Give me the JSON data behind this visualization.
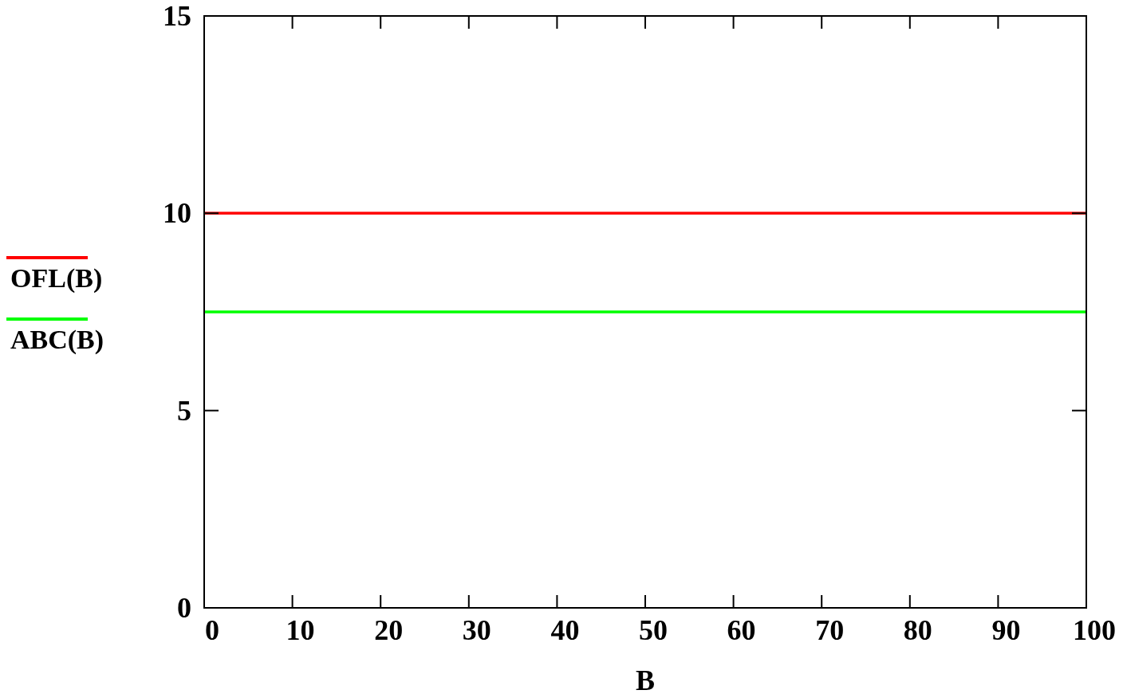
{
  "chart_data": {
    "type": "line",
    "xlabel": "B",
    "x": [
      0,
      100
    ],
    "series": [
      {
        "name": "OFL(B)",
        "color": "#ff0000",
        "values": [
          10,
          10
        ]
      },
      {
        "name": "ABC(B)",
        "color": "#00ff00",
        "values": [
          7.5,
          7.5
        ]
      }
    ],
    "xlim": [
      0,
      100
    ],
    "xticks": [
      0,
      10,
      20,
      30,
      40,
      50,
      60,
      70,
      80,
      90,
      100
    ],
    "ylim": [
      0,
      15
    ],
    "yticks": [
      0,
      5,
      10,
      15
    ],
    "legend": "left",
    "grid": false,
    "marker": "none",
    "line_style": "solid"
  }
}
